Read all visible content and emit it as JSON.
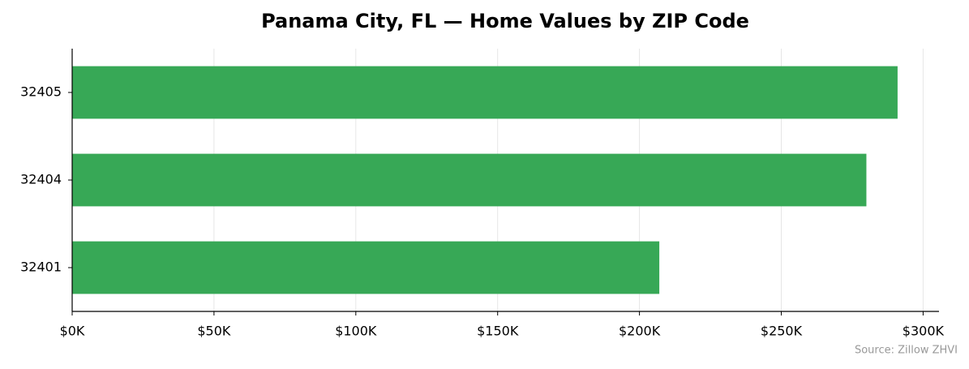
{
  "chart_data": {
    "type": "bar",
    "orientation": "horizontal",
    "title": "Panama City, FL — Home Values by ZIP Code",
    "source": "Source: Zillow ZHVI",
    "categories": [
      "32405",
      "32404",
      "32401"
    ],
    "values": [
      291000,
      280000,
      207000
    ],
    "color": "#37a856",
    "xlim": [
      0,
      305600
    ],
    "xticks": [
      {
        "value": 0,
        "label": "$0K"
      },
      {
        "value": 50000,
        "label": "$50K"
      },
      {
        "value": 100000,
        "label": "$100K"
      },
      {
        "value": 150000,
        "label": "$150K"
      },
      {
        "value": 200000,
        "label": "$200K"
      },
      {
        "value": 250000,
        "label": "$250K"
      },
      {
        "value": 300000,
        "label": "$300K"
      }
    ],
    "grid": true
  }
}
